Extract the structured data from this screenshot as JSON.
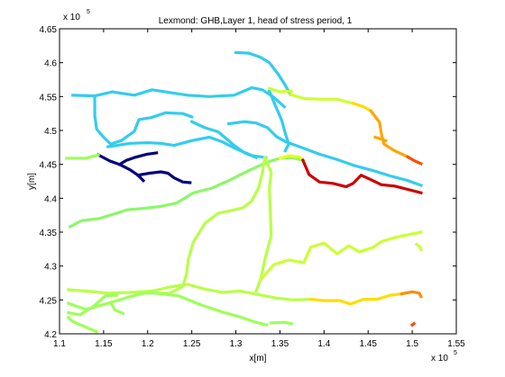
{
  "chart_data": {
    "type": "line",
    "title": "Lexmond: GHB,Layer 1, head of stress period, 1",
    "xlabel": "x[m]",
    "ylabel": "y[m]",
    "xlim": [
      110000,
      155000
    ],
    "ylim": [
      420000,
      465000
    ],
    "x_ticks": [
      "1.1",
      "1.15",
      "1.2",
      "1.25",
      "1.3",
      "1.35",
      "1.4",
      "1.45",
      "1.5",
      "1.55"
    ],
    "y_ticks": [
      "4.2",
      "4.25",
      "4.3",
      "4.35",
      "4.4",
      "4.45",
      "4.5",
      "4.55",
      "4.6",
      "4.65"
    ],
    "x_tick_values": [
      110000,
      115000,
      120000,
      125000,
      130000,
      135000,
      140000,
      145000,
      150000,
      155000
    ],
    "y_tick_values": [
      420000,
      425000,
      430000,
      435000,
      440000,
      445000,
      450000,
      455000,
      460000,
      465000
    ],
    "x_exponent": {
      "base": "x 10",
      "power": "5"
    },
    "y_exponent": {
      "base": "x 10",
      "power": "5"
    },
    "grid": false,
    "colormap": "jet",
    "series": [
      {
        "color": "#33ccee",
        "points": [
          [
            111500,
            455200
          ],
          [
            114000,
            455100
          ],
          [
            116000,
            455700
          ],
          [
            118500,
            455200
          ],
          [
            120500,
            456000
          ],
          [
            122500,
            455600
          ],
          [
            124500,
            455200
          ],
          [
            127000,
            455000
          ],
          [
            129800,
            455200
          ],
          [
            131800,
            456300
          ],
          [
            133000,
            456000
          ],
          [
            134200,
            455000
          ],
          [
            135500,
            453500
          ]
        ]
      },
      {
        "color": "#33ccee",
        "points": [
          [
            114000,
            455100
          ],
          [
            114000,
            452200
          ],
          [
            114200,
            450200
          ],
          [
            115000,
            449000
          ],
          [
            115800,
            448000
          ],
          [
            117000,
            448500
          ],
          [
            118500,
            449900
          ],
          [
            119000,
            451600
          ],
          [
            120400,
            451900
          ],
          [
            122000,
            452600
          ],
          [
            124000,
            452500
          ],
          [
            125000,
            452000
          ]
        ]
      },
      {
        "color": "#33ccee",
        "points": [
          [
            115500,
            447600
          ],
          [
            118000,
            448100
          ],
          [
            120000,
            448200
          ],
          [
            121500,
            448100
          ],
          [
            123000,
            447800
          ],
          [
            125000,
            448500
          ],
          [
            127000,
            449000
          ],
          [
            128500,
            448300
          ],
          [
            130000,
            447300
          ],
          [
            131800,
            446300
          ],
          [
            133400,
            446000
          ]
        ]
      },
      {
        "color": "#33ccee",
        "points": [
          [
            130000,
            461500
          ],
          [
            131500,
            461400
          ],
          [
            132800,
            460800
          ],
          [
            133800,
            460000
          ],
          [
            134800,
            458300
          ],
          [
            135500,
            456900
          ],
          [
            136200,
            455300
          ]
        ]
      },
      {
        "color": "#33ccee",
        "points": [
          [
            129200,
            451000
          ],
          [
            131000,
            451300
          ],
          [
            132300,
            451100
          ],
          [
            133600,
            450400
          ],
          [
            134600,
            449100
          ],
          [
            135700,
            448300
          ],
          [
            137400,
            447500
          ],
          [
            139500,
            446500
          ],
          [
            141500,
            445700
          ],
          [
            143500,
            444800
          ],
          [
            145500,
            444100
          ],
          [
            147500,
            443300
          ],
          [
            149500,
            442600
          ],
          [
            151000,
            441900
          ]
        ]
      },
      {
        "color": "#33ccee",
        "points": [
          [
            133800,
            455800
          ],
          [
            134500,
            453600
          ],
          [
            135200,
            451500
          ],
          [
            135600,
            449600
          ],
          [
            136000,
            448000
          ],
          [
            135600,
            447000
          ]
        ]
      },
      {
        "color": "#33ccee",
        "points": [
          [
            125000,
            451300
          ],
          [
            126500,
            450400
          ],
          [
            128000,
            449800
          ],
          [
            129800,
            447800
          ],
          [
            131000,
            446700
          ],
          [
            132300,
            446000
          ]
        ]
      },
      {
        "color": "#00007f",
        "points": [
          [
            114400,
            446400
          ],
          [
            115700,
            445500
          ],
          [
            116800,
            445000
          ],
          [
            118000,
            444200
          ],
          [
            118900,
            443400
          ],
          [
            119500,
            442600
          ]
        ]
      },
      {
        "color": "#00007f",
        "points": [
          [
            116800,
            445000
          ],
          [
            117600,
            445600
          ],
          [
            118500,
            446000
          ],
          [
            119900,
            446500
          ],
          [
            121000,
            446700
          ]
        ]
      },
      {
        "color": "#00007f",
        "points": [
          [
            118900,
            443400
          ],
          [
            120200,
            443700
          ],
          [
            121500,
            443900
          ],
          [
            122300,
            443700
          ],
          [
            123000,
            443000
          ],
          [
            124000,
            442400
          ],
          [
            124800,
            442300
          ]
        ]
      },
      {
        "color": "#9dff5a",
        "points": [
          [
            110800,
            445900
          ],
          [
            113000,
            445900
          ],
          [
            114400,
            446400
          ]
        ]
      },
      {
        "color": "#8cf76a",
        "points": [
          [
            111200,
            435800
          ],
          [
            112500,
            436700
          ],
          [
            114500,
            437000
          ],
          [
            116000,
            437600
          ],
          [
            117700,
            438300
          ],
          [
            119500,
            438500
          ],
          [
            121500,
            438800
          ],
          [
            123300,
            439300
          ],
          [
            125200,
            440800
          ],
          [
            127300,
            441500
          ],
          [
            129500,
            442800
          ],
          [
            131500,
            444100
          ],
          [
            133500,
            445300
          ],
          [
            135000,
            445900
          ],
          [
            136300,
            446000
          ],
          [
            137600,
            445600
          ]
        ]
      },
      {
        "color": "#b8ff48",
        "points": [
          [
            133300,
            446000
          ],
          [
            133000,
            443800
          ],
          [
            132600,
            441600
          ],
          [
            131800,
            439600
          ],
          [
            130800,
            438600
          ],
          [
            129500,
            438200
          ],
          [
            128000,
            437800
          ],
          [
            126500,
            436300
          ],
          [
            125200,
            433600
          ],
          [
            124600,
            431000
          ],
          [
            124400,
            428800
          ],
          [
            124000,
            427000
          ],
          [
            122500,
            426000
          ],
          [
            121000,
            426000
          ]
        ]
      },
      {
        "color": "#b8ff48",
        "points": [
          [
            133300,
            446000
          ],
          [
            134000,
            443800
          ],
          [
            133800,
            441500
          ],
          [
            133900,
            438200
          ],
          [
            134000,
            434500
          ],
          [
            133300,
            431000
          ],
          [
            132800,
            428000
          ],
          [
            132300,
            426300
          ]
        ]
      },
      {
        "color": "#ccff33",
        "points": [
          [
            132800,
            428000
          ],
          [
            134300,
            430200
          ],
          [
            136000,
            430900
          ],
          [
            137700,
            430500
          ],
          [
            138500,
            432800
          ],
          [
            140000,
            433400
          ],
          [
            141500,
            431800
          ],
          [
            142800,
            433000
          ],
          [
            144000,
            432100
          ],
          [
            145500,
            432700
          ],
          [
            146500,
            433600
          ],
          [
            148000,
            434200
          ],
          [
            149500,
            434600
          ],
          [
            151000,
            435000
          ]
        ]
      },
      {
        "color": "#ccff33",
        "points": [
          [
            150500,
            433200
          ],
          [
            150900,
            432800
          ],
          [
            151000,
            432400
          ]
        ]
      },
      {
        "color": "#e8ff17",
        "points": [
          [
            135000,
            445900
          ],
          [
            136000,
            446300
          ],
          [
            137200,
            446100
          ],
          [
            137600,
            445600
          ]
        ]
      },
      {
        "color": "#b8ff48",
        "points": [
          [
            111000,
            426500
          ],
          [
            113000,
            426300
          ],
          [
            115500,
            426000
          ],
          [
            118000,
            426100
          ],
          [
            120500,
            426300
          ],
          [
            122500,
            426900
          ],
          [
            124500,
            427300
          ],
          [
            126500,
            426600
          ],
          [
            128500,
            426100
          ],
          [
            130500,
            426300
          ],
          [
            132500,
            425800
          ],
          [
            134500,
            425300
          ],
          [
            136500,
            425000
          ],
          [
            138500,
            425100
          ]
        ]
      },
      {
        "color": "#9dff5a",
        "points": [
          [
            111000,
            424500
          ],
          [
            113000,
            423600
          ],
          [
            115500,
            424500
          ],
          [
            117500,
            425300
          ],
          [
            119500,
            426000
          ],
          [
            121000,
            426000
          ]
        ]
      },
      {
        "color": "#9dff5a",
        "points": [
          [
            111000,
            423100
          ],
          [
            112300,
            422800
          ],
          [
            113800,
            424000
          ],
          [
            115200,
            425600
          ],
          [
            116500,
            425700
          ]
        ]
      },
      {
        "color": "#9dff5a",
        "points": [
          [
            121000,
            426000
          ],
          [
            123500,
            425600
          ],
          [
            126000,
            424300
          ],
          [
            128500,
            423200
          ],
          [
            130500,
            422500
          ],
          [
            132000,
            421800
          ],
          [
            133500,
            421300
          ]
        ]
      },
      {
        "color": "#9dff5a",
        "points": [
          [
            114200,
            420300
          ],
          [
            111500,
            421800
          ],
          [
            111000,
            422400
          ]
        ]
      },
      {
        "color": "#9dff5a",
        "points": [
          [
            134000,
            421600
          ],
          [
            135500,
            421700
          ],
          [
            136300,
            421500
          ]
        ]
      },
      {
        "color": "#9dff5a",
        "points": [
          [
            115800,
            424600
          ],
          [
            116300,
            423500
          ],
          [
            117200,
            423000
          ]
        ]
      },
      {
        "color": "#ffdd00",
        "points": [
          [
            138500,
            425100
          ],
          [
            140000,
            424900
          ],
          [
            141800,
            424900
          ],
          [
            143000,
            424400
          ],
          [
            144500,
            425100
          ],
          [
            146000,
            425100
          ],
          [
            147500,
            425700
          ],
          [
            148800,
            425900
          ]
        ]
      },
      {
        "color": "#ff8c00",
        "points": [
          [
            148800,
            425900
          ],
          [
            150000,
            426200
          ],
          [
            150800,
            426000
          ],
          [
            151000,
            425500
          ]
        ]
      },
      {
        "color": "#ff4d00",
        "points": [
          [
            150000,
            421300
          ],
          [
            150200,
            421500
          ]
        ]
      },
      {
        "color": "#cc0000",
        "points": [
          [
            137600,
            445600
          ],
          [
            138300,
            443500
          ],
          [
            139500,
            442400
          ],
          [
            141000,
            442200
          ],
          [
            142500,
            441700
          ],
          [
            143300,
            442200
          ],
          [
            144200,
            443400
          ],
          [
            145200,
            442800
          ],
          [
            146500,
            442000
          ],
          [
            148000,
            441800
          ],
          [
            149500,
            441300
          ],
          [
            151000,
            440800
          ]
        ]
      },
      {
        "color": "#ccff33",
        "points": [
          [
            136200,
            455300
          ],
          [
            137800,
            454700
          ],
          [
            139800,
            454600
          ],
          [
            141500,
            454600
          ],
          [
            143300,
            454000
          ]
        ]
      },
      {
        "color": "#ccff33",
        "points": [
          [
            133800,
            456200
          ],
          [
            135000,
            455700
          ],
          [
            136300,
            455800
          ]
        ]
      },
      {
        "color": "#ffdd00",
        "points": [
          [
            143300,
            454000
          ],
          [
            144500,
            453500
          ],
          [
            145300,
            452900
          ]
        ]
      },
      {
        "color": "#ffa500",
        "points": [
          [
            145300,
            452900
          ],
          [
            146300,
            451200
          ],
          [
            146500,
            449500
          ],
          [
            146800,
            448000
          ],
          [
            148000,
            447000
          ],
          [
            149500,
            446100
          ]
        ]
      },
      {
        "color": "#ff4d00",
        "points": [
          [
            149500,
            446100
          ],
          [
            150300,
            445500
          ],
          [
            151000,
            445100
          ]
        ]
      },
      {
        "color": "#ffa500",
        "points": [
          [
            145800,
            449000
          ],
          [
            147000,
            448500
          ]
        ]
      }
    ]
  }
}
